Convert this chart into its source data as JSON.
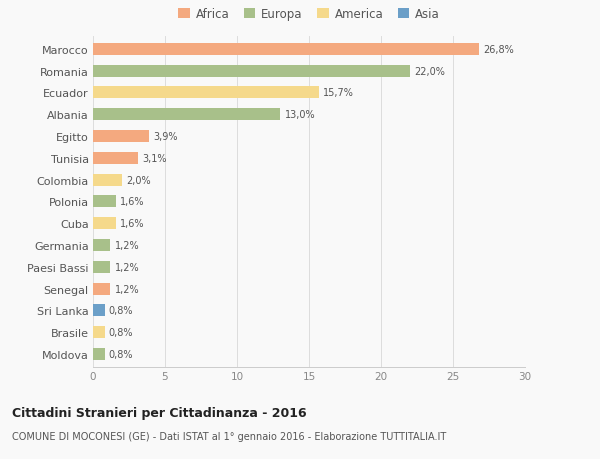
{
  "categories": [
    "Marocco",
    "Romania",
    "Ecuador",
    "Albania",
    "Egitto",
    "Tunisia",
    "Colombia",
    "Polonia",
    "Cuba",
    "Germania",
    "Paesi Bassi",
    "Senegal",
    "Sri Lanka",
    "Brasile",
    "Moldova"
  ],
  "values": [
    26.8,
    22.0,
    15.7,
    13.0,
    3.9,
    3.1,
    2.0,
    1.6,
    1.6,
    1.2,
    1.2,
    1.2,
    0.8,
    0.8,
    0.8
  ],
  "labels": [
    "26,8%",
    "22,0%",
    "15,7%",
    "13,0%",
    "3,9%",
    "3,1%",
    "2,0%",
    "1,6%",
    "1,6%",
    "1,2%",
    "1,2%",
    "1,2%",
    "0,8%",
    "0,8%",
    "0,8%"
  ],
  "colors": [
    "#F4A97F",
    "#A8C08A",
    "#F5D98B",
    "#A8C08A",
    "#F4A97F",
    "#F4A97F",
    "#F5D98B",
    "#A8C08A",
    "#F5D98B",
    "#A8C08A",
    "#A8C08A",
    "#F4A97F",
    "#6B9FC8",
    "#F5D98B",
    "#A8C08A"
  ],
  "legend_labels": [
    "Africa",
    "Europa",
    "America",
    "Asia"
  ],
  "legend_colors": [
    "#F4A97F",
    "#A8C08A",
    "#F5D98B",
    "#6B9FC8"
  ],
  "title": "Cittadini Stranieri per Cittadinanza - 2016",
  "subtitle": "COMUNE DI MOCONESI (GE) - Dati ISTAT al 1° gennaio 2016 - Elaborazione TUTTITALIA.IT",
  "xlim": [
    0,
    30
  ],
  "xticks": [
    0,
    5,
    10,
    15,
    20,
    25,
    30
  ],
  "background_color": "#f9f9f9",
  "grid_color": "#dddddd",
  "bar_height": 0.55
}
